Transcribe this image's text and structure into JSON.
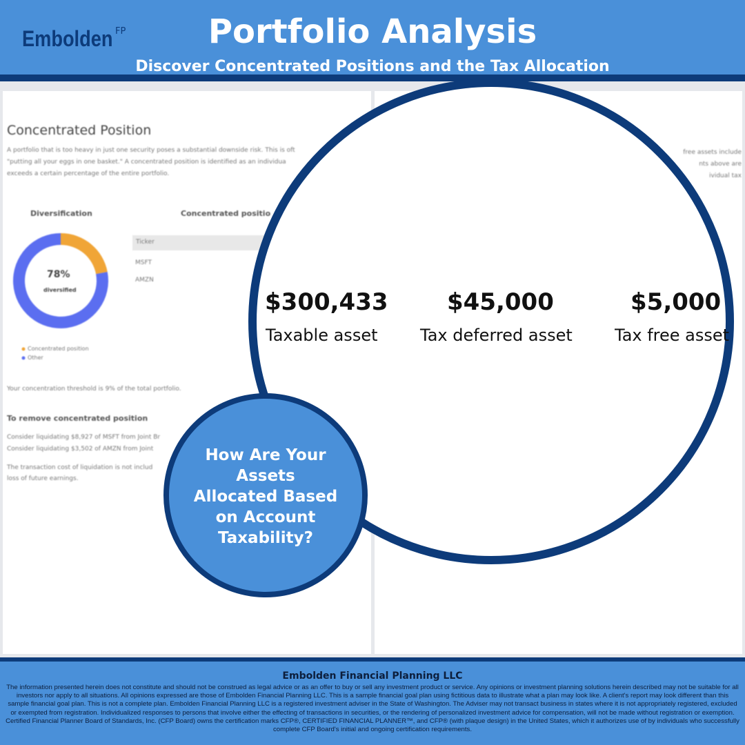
{
  "header": {
    "brand": "Embolden",
    "brand_mark": "FP",
    "title": "Portfolio Analysis",
    "subtitle": "Discover Concentrated Positions and the Tax Allocation"
  },
  "report": {
    "section_title": "Concentrated Position",
    "intro_lines": [
      "A portfolio that is too heavy in just one security poses a substantial downside risk. This is oft",
      "\"putting all your eggs in one basket.\" A concentrated position is identified as an individua",
      "exceeds a certain percentage of the entire portfolio."
    ],
    "right_fragments": [
      "free assets include",
      "nts above are",
      "ividual tax"
    ],
    "donut": {
      "title": "Diversification",
      "center_label": "78%",
      "center_caption": "diversified",
      "series": [
        {
          "name": "Concentrated position",
          "color": "#f0a537",
          "value": 22
        },
        {
          "name": "Other",
          "color": "#5b6ef0",
          "value": 78
        }
      ]
    },
    "table": {
      "title": "Concentrated positio",
      "header": "Ticker",
      "rows": [
        "MSFT",
        "AMZN"
      ]
    },
    "threshold_note": "Your concentration threshold is 9% of the total portfolio.",
    "remove_title": "To remove concentrated position",
    "remove_lines": [
      "Consider liquidating $8,927 of MSFT from Joint Br",
      "Consider liquidating $3,502 of AMZN from Joint"
    ],
    "cost_lines": [
      "The transaction cost of liquidation is not includ",
      "loss of future earnings."
    ]
  },
  "assets": [
    {
      "amount": "$300,433",
      "label": "Taxable asset"
    },
    {
      "amount": "$45,000",
      "label": "Tax deferred asset"
    },
    {
      "amount": "$5,000",
      "label": "Tax free asset"
    }
  ],
  "callout": "How Are Your Assets Allocated Based on Account Taxability?",
  "footer": {
    "company": "Embolden Financial Planning LLC",
    "disclaimer": "The information presented herein does not constitute and should not be construed as legal advice or as an offer to buy or sell any investment product or service. Any opinions or investment planning solutions herein described may not be suitable for all investors nor apply to all situations. All opinions expressed are those of Embolden Financial Planning LLC. This is a sample financial goal plan using fictitious data to illustrate what a plan may look like. A client's report may look different than this sample financial goal plan. This is not a complete plan. Embolden Financial Planning LLC is a registered investment adviser in the State of Washington. The Adviser may not transact business in states where it is not appropriately registered, excluded or exempted from registration. Individualized responses to persons that involve either the effecting of transactions in securities, or the rendering of personalized investment advice for compensation, will not be made without registration or exemption. Certified Financial Planner Board of Standards, Inc. (CFP Board) owns the certification marks CFP®, CERTIFIED FINANCIAL PLANNER™, and CFP® (with plaque design) in the United States, which it authorizes use of by individuals who successfully complete CFP Board's initial and ongoing certification requirements."
  }
}
